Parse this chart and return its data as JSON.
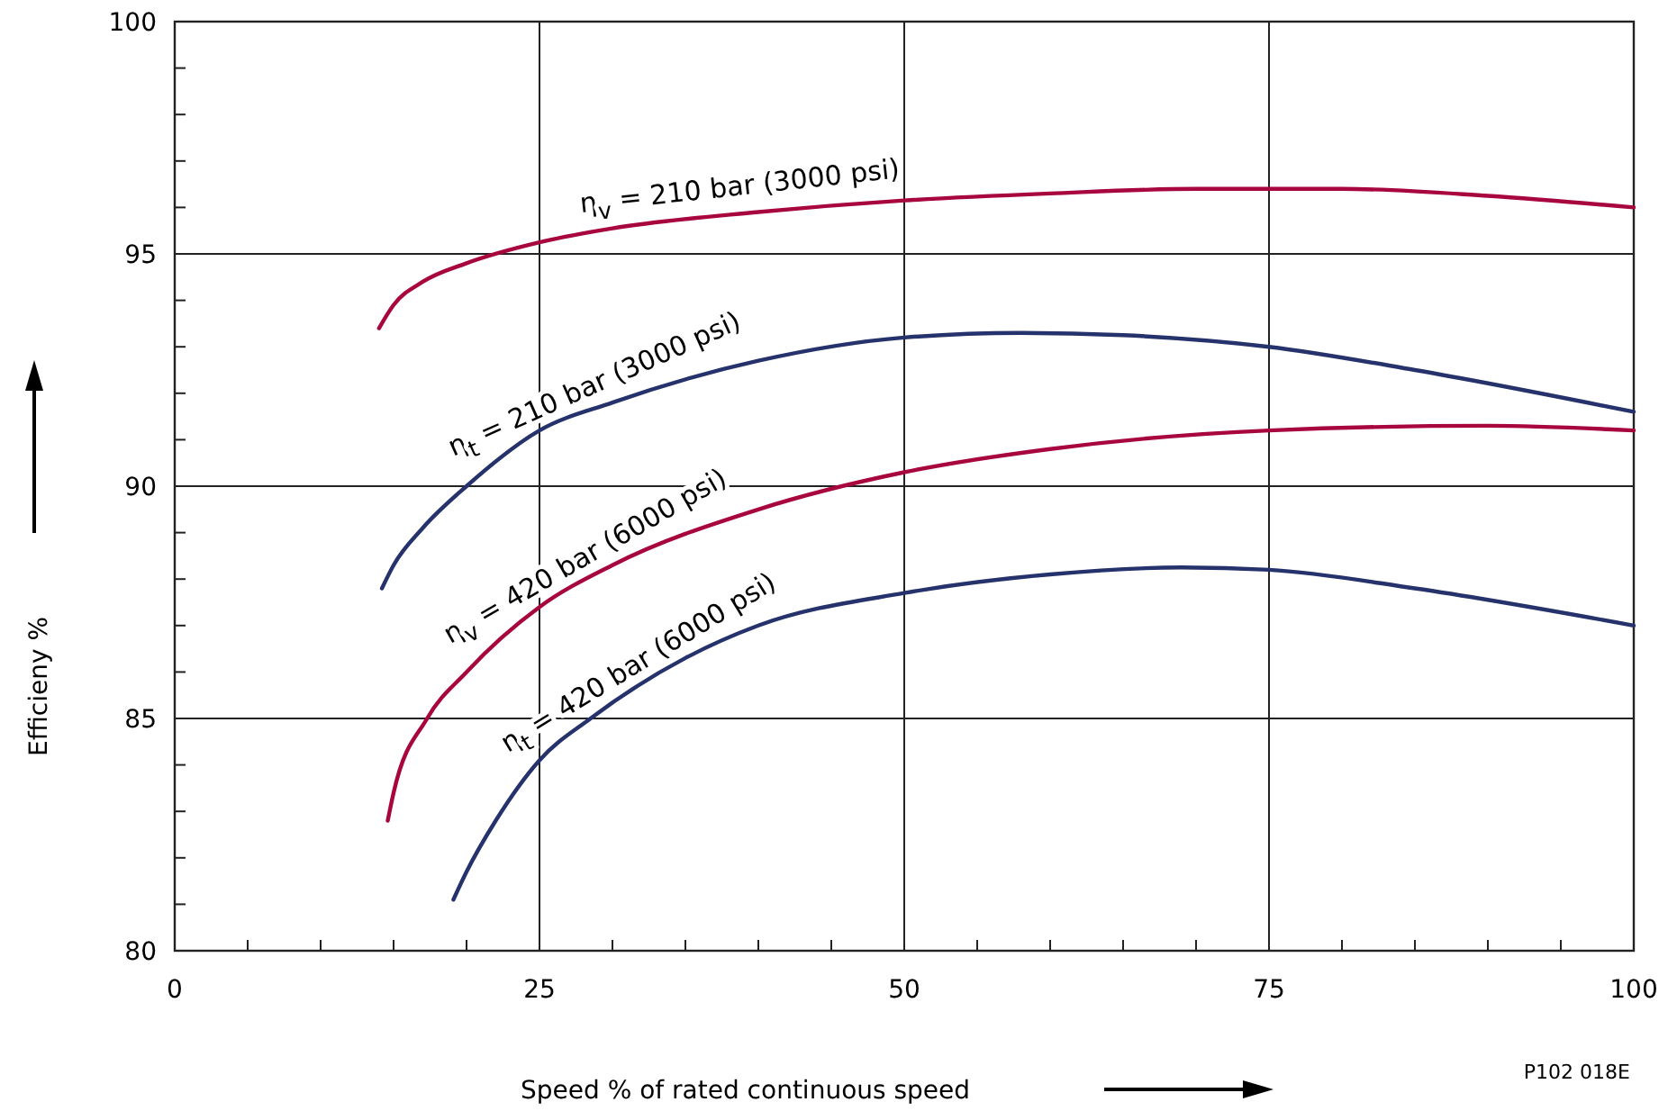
{
  "chart_data": {
    "type": "line",
    "xlabel": "Speed % of rated continuous speed",
    "ylabel": "Efficieny  %",
    "xlim": [
      0,
      100
    ],
    "xticks": [
      0,
      {
        "value": 5,
        "label": null
      },
      {
        "value": 10,
        "label": null
      },
      {
        "value": 15,
        "label": null
      },
      {
        "value": 20,
        "label": null
      },
      25,
      {
        "value": 30,
        "label": null
      },
      {
        "value": 35,
        "label": null
      },
      {
        "value": 40,
        "label": null
      },
      {
        "value": 45,
        "label": null
      },
      50,
      {
        "value": 55,
        "label": null
      },
      {
        "value": 60,
        "label": null
      },
      {
        "value": 65,
        "label": null
      },
      {
        "value": 70,
        "label": null
      },
      75,
      {
        "value": 80,
        "label": null
      },
      {
        "value": 85,
        "label": null
      },
      {
        "value": 90,
        "label": null
      },
      {
        "value": 95,
        "label": null
      },
      100
    ],
    "ylim": [
      80,
      100
    ],
    "yticks": [
      80,
      {
        "value": 81,
        "label": null
      },
      {
        "value": 82,
        "label": null
      },
      {
        "value": 83,
        "label": null
      },
      {
        "value": 84,
        "label": null
      },
      85,
      {
        "value": 86,
        "label": null
      },
      {
        "value": 87,
        "label": null
      },
      {
        "value": 88,
        "label": null
      },
      {
        "value": 89,
        "label": null
      },
      90,
      {
        "value": 91,
        "label": null
      },
      {
        "value": 92,
        "label": null
      },
      {
        "value": 93,
        "label": null
      },
      {
        "value": 94,
        "label": null
      },
      95,
      {
        "value": 96,
        "label": null
      },
      {
        "value": 97,
        "label": null
      },
      {
        "value": 98,
        "label": null
      },
      {
        "value": 99,
        "label": null
      },
      100
    ],
    "grid": true,
    "marker": "none",
    "line_style": "solid",
    "series": [
      {
        "name": "η$_{v}$ = 210 bar (3000 psi)",
        "color": "#a8063e",
        "x": [
          14,
          15,
          17,
          20,
          25,
          30,
          40,
          50,
          60,
          70,
          75,
          80,
          90,
          100
        ],
        "values": [
          93.4,
          93.9,
          94.4,
          94.8,
          95.25,
          95.55,
          95.9,
          96.15,
          96.3,
          96.4,
          96.4,
          96.4,
          96.25,
          96.0
        ]
      },
      {
        "name": "η$_{t}$ = 210 bar (3000 psi)",
        "color": "#25326b",
        "x": [
          14.2,
          15,
          17,
          20,
          25,
          30,
          40,
          50,
          58,
          65,
          75,
          85,
          100
        ],
        "values": [
          87.8,
          88.3,
          89.1,
          90.0,
          91.2,
          91.8,
          92.7,
          93.2,
          93.3,
          93.25,
          93.0,
          92.5,
          91.6
        ]
      },
      {
        "name": "η$_{v}$ = 420 bar (6000 psi)",
        "color": "#a8063e",
        "x": [
          14.6,
          15,
          17.3,
          20,
          25,
          30,
          40,
          50,
          60,
          75,
          90,
          100
        ],
        "values": [
          82.8,
          83.4,
          85.0,
          86.0,
          87.4,
          88.3,
          89.5,
          90.3,
          90.8,
          91.2,
          91.3,
          91.2
        ]
      },
      {
        "name": "η$_{t}$ = 420 bar (6000 psi)",
        "color": "#25326b",
        "x": [
          19.1,
          20,
          22,
          25,
          28.5,
          35,
          40,
          50,
          60,
          69,
          75,
          85,
          100
        ],
        "values": [
          81.1,
          81.7,
          82.8,
          84.1,
          85.0,
          86.3,
          87.0,
          87.7,
          88.1,
          88.25,
          88.2,
          87.8,
          87.0
        ]
      }
    ],
    "annotations": [
      "P102 018E"
    ]
  }
}
